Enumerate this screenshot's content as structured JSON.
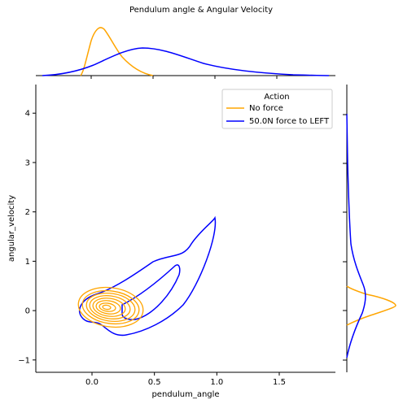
{
  "chart_data": {
    "type": "jointplot-kde",
    "title": "Pendulum angle & Angular Velocity",
    "xlabel": "pendulum_angle",
    "ylabel": "angular_velocity",
    "xlim": [
      -0.45,
      1.95
    ],
    "ylim": [
      -1.25,
      4.58
    ],
    "xticks": [
      0.0,
      0.5,
      1.0,
      1.5
    ],
    "xtick_labels": [
      "0.0",
      "0.5",
      "1.0",
      "1.5"
    ],
    "yticks": [
      -1,
      0,
      1,
      2,
      3,
      4
    ],
    "ytick_labels": [
      "−1",
      "0",
      "1",
      "2",
      "3",
      "4"
    ],
    "legend": {
      "title": "Action",
      "placement": "top-right",
      "entries": [
        {
          "label": "No force",
          "color": "#FFA500"
        },
        {
          "label": "50.0N force to LEFT",
          "color": "#0000FF"
        }
      ]
    },
    "series": [
      {
        "name": "No force",
        "color": "#FFA500",
        "center": [
          0.1,
          0.1
        ],
        "x_marginal": [
          [
            -0.05,
            0.0
          ],
          [
            0.0,
            0.1
          ],
          [
            0.05,
            0.55
          ],
          [
            0.1,
            0.95
          ],
          [
            0.15,
            0.75
          ],
          [
            0.2,
            0.38
          ],
          [
            0.25,
            0.15
          ],
          [
            0.3,
            0.06
          ],
          [
            0.4,
            0.01
          ],
          [
            0.5,
            0.0
          ]
        ],
        "y_marginal": [
          [
            -0.35,
            0.0
          ],
          [
            -0.2,
            0.18
          ],
          [
            0.0,
            0.55
          ],
          [
            0.1,
            0.8
          ],
          [
            0.2,
            0.5
          ],
          [
            0.4,
            0.12
          ],
          [
            0.6,
            0.0
          ]
        ]
      },
      {
        "name": "50.0N force to LEFT",
        "color": "#0000FF",
        "x_marginal": [
          [
            -0.4,
            0.0
          ],
          [
            -0.2,
            0.01
          ],
          [
            0.0,
            0.1
          ],
          [
            0.2,
            0.3
          ],
          [
            0.4,
            0.42
          ],
          [
            0.5,
            0.4
          ],
          [
            0.8,
            0.26
          ],
          [
            1.0,
            0.14
          ],
          [
            1.2,
            0.06
          ],
          [
            1.5,
            0.02
          ],
          [
            1.9,
            0.0
          ]
        ],
        "y_marginal": [
          [
            -0.9,
            0.0
          ],
          [
            -0.5,
            0.12
          ],
          [
            0.0,
            0.45
          ],
          [
            0.3,
            0.55
          ],
          [
            0.5,
            0.42
          ],
          [
            1.0,
            0.15
          ],
          [
            1.5,
            0.06
          ],
          [
            2.0,
            0.03
          ],
          [
            3.0,
            0.01
          ],
          [
            4.0,
            0.0
          ]
        ]
      }
    ]
  }
}
